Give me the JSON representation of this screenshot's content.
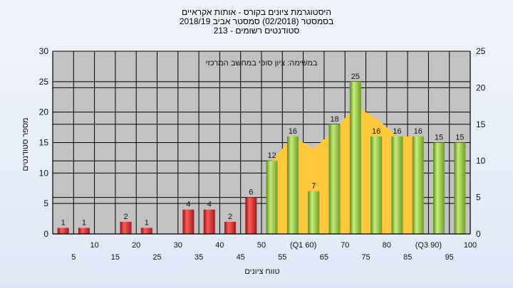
{
  "chart_data": {
    "type": "bar",
    "title_lines": [
      "היסטוגרמת ציונים בקורס - אותות אקראיים",
      "בסמסטר  (02/2018)  סמסטר אביב 2018/19",
      "סטודנטים רשומים - 213"
    ],
    "plot_label": "במשימה: ציון סופי במחשב המרכזי",
    "xlabel": "טווח ציונים",
    "ylabel": "מספר סטודנטים",
    "ylim": [
      0,
      30
    ],
    "y_ticks": [
      0,
      5,
      10,
      15,
      20,
      25,
      30
    ],
    "y2lim": [
      0,
      25
    ],
    "y2_ticks": [
      0,
      5,
      10,
      15,
      20,
      25
    ],
    "x_tick_labels": [
      "5",
      "10",
      "15",
      "20",
      "25",
      "30",
      "35",
      "40",
      "45",
      "50",
      "55",
      "(Q1 60)",
      "65",
      "70",
      "75",
      "80",
      "85",
      "(Q3 90)",
      "95",
      "100"
    ],
    "categories": [
      "5",
      "10",
      "15",
      "20",
      "25",
      "30",
      "35",
      "40",
      "45",
      "50",
      "55",
      "60",
      "65",
      "70",
      "75",
      "80",
      "85",
      "90",
      "95",
      "100"
    ],
    "values": [
      1,
      1,
      0,
      2,
      1,
      0,
      4,
      4,
      2,
      6,
      12,
      16,
      7,
      18,
      25,
      16,
      16,
      16,
      15,
      15
    ],
    "value_labels": [
      "1",
      "1",
      "",
      "2",
      "1",
      "",
      "4",
      "4",
      "2",
      "6",
      "12",
      "16",
      "7",
      "18",
      "25",
      "16",
      "16",
      "16",
      "15",
      "15"
    ],
    "bar_colors": [
      "red",
      "red",
      "red",
      "red",
      "red",
      "red",
      "red",
      "red",
      "red",
      "red",
      "green",
      "green",
      "green",
      "green",
      "green",
      "green",
      "green",
      "green",
      "green",
      "green"
    ],
    "area_series": {
      "x": [
        "55",
        "60",
        "65",
        "70",
        "75",
        "80",
        "85",
        "90"
      ],
      "values": [
        12,
        16,
        14,
        17,
        21,
        19,
        16,
        16
      ]
    },
    "grid": true,
    "colors": {
      "red_bar": "#d42a2a",
      "green_bar": "#8cc63f",
      "area_fill": "#ffc83d",
      "plot_background": "#c2c2c2"
    }
  }
}
